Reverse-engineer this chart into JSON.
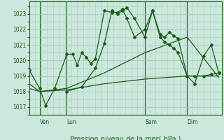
{
  "bg_color": "#cce8dc",
  "grid_color": "#aaccbb",
  "line_color": "#1a5c1a",
  "title": "Pression niveau de la mer( hPa )",
  "ylim": [
    1016.5,
    1023.8
  ],
  "yticks": [
    1017,
    1018,
    1019,
    1020,
    1021,
    1022,
    1023
  ],
  "x_labels": [
    [
      "Ven",
      7
    ],
    [
      "Lun",
      25
    ],
    [
      "Sam",
      77
    ],
    [
      "Dim",
      105
    ]
  ],
  "x_vlines": [
    7,
    25,
    77,
    105
  ],
  "xlim": [
    0,
    128
  ],
  "series1_x": [
    0,
    7,
    11,
    17,
    25,
    29,
    32,
    35,
    38,
    41,
    44,
    50,
    55,
    59,
    62,
    65,
    70,
    77,
    82,
    87,
    90,
    93,
    96,
    99,
    105,
    110,
    116,
    121,
    126
  ],
  "series1_y": [
    1019.4,
    1018.2,
    1017.1,
    1018.2,
    1020.4,
    1020.4,
    1019.7,
    1020.5,
    1020.2,
    1019.8,
    1020.1,
    1023.2,
    1023.1,
    1023.1,
    1023.3,
    1022.7,
    1021.5,
    1022.0,
    1023.2,
    1021.5,
    1021.2,
    1021.0,
    1020.8,
    1020.5,
    1019.0,
    1019.0,
    1019.0,
    1019.1,
    1019.2
  ],
  "series2_x": [
    0,
    7,
    25,
    50,
    77,
    105,
    126
  ],
  "series2_y": [
    1018.2,
    1018.0,
    1018.1,
    1018.5,
    1018.8,
    1019.0,
    1019.0
  ],
  "series3_x": [
    0,
    7,
    25,
    50,
    77,
    105,
    126
  ],
  "series3_y": [
    1018.5,
    1018.0,
    1018.2,
    1019.2,
    1020.5,
    1021.5,
    1018.9
  ],
  "series4_x": [
    25,
    35,
    44,
    50,
    55,
    59,
    62,
    65,
    70,
    77,
    82,
    87,
    90,
    93,
    96,
    99,
    105,
    110,
    116,
    121,
    126
  ],
  "series4_y": [
    1018.0,
    1018.3,
    1019.5,
    1021.1,
    1023.2,
    1023.0,
    1023.2,
    1023.4,
    1022.7,
    1021.5,
    1023.2,
    1021.7,
    1021.5,
    1021.8,
    1021.6,
    1021.4,
    1019.0,
    1018.5,
    1020.3,
    1021.0,
    1019.2
  ]
}
